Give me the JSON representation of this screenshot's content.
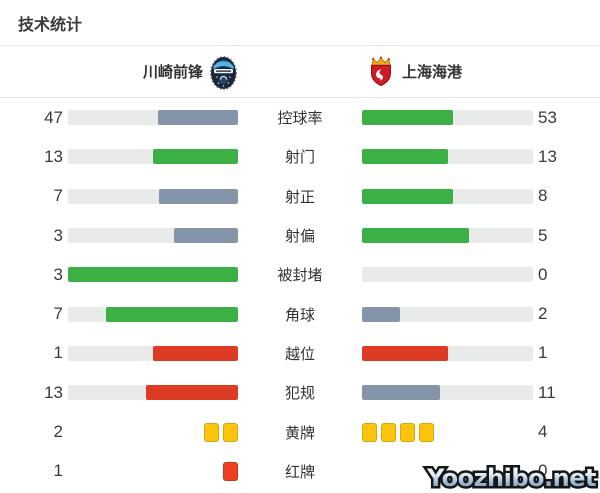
{
  "page": {
    "title": "技术统计"
  },
  "teams": {
    "home": {
      "name": "川崎前锋"
    },
    "away": {
      "name": "上海海港"
    }
  },
  "colors": {
    "win_green": "#3cb044",
    "lose_slate": "#8595a9",
    "bad_red": "#dd3b23",
    "yellow_card": "#fcc40d",
    "red_card": "#ee4023",
    "bar_track": "#e9eaea"
  },
  "stats": [
    {
      "label": "控球率",
      "home": {
        "value": "47",
        "pct": 47,
        "color": "#8595a9"
      },
      "away": {
        "value": "53",
        "pct": 53,
        "color": "#3cb044"
      }
    },
    {
      "label": "射门",
      "home": {
        "value": "13",
        "pct": 50,
        "color": "#3cb044"
      },
      "away": {
        "value": "13",
        "pct": 50,
        "color": "#3cb044"
      }
    },
    {
      "label": "射正",
      "home": {
        "value": "7",
        "pct": 46.7,
        "color": "#8595a9"
      },
      "away": {
        "value": "8",
        "pct": 53.3,
        "color": "#3cb044"
      }
    },
    {
      "label": "射偏",
      "home": {
        "value": "3",
        "pct": 37.5,
        "color": "#8595a9"
      },
      "away": {
        "value": "5",
        "pct": 62.5,
        "color": "#3cb044"
      }
    },
    {
      "label": "被封堵",
      "home": {
        "value": "3",
        "pct": 100,
        "color": "#3cb044"
      },
      "away": {
        "value": "0",
        "pct": 0,
        "color": "#3cb044"
      }
    },
    {
      "label": "角球",
      "home": {
        "value": "7",
        "pct": 77.8,
        "color": "#3cb044"
      },
      "away": {
        "value": "2",
        "pct": 22.2,
        "color": "#8595a9"
      }
    },
    {
      "label": "越位",
      "home": {
        "value": "1",
        "pct": 50,
        "color": "#dd3b23"
      },
      "away": {
        "value": "1",
        "pct": 50,
        "color": "#dd3b23"
      }
    },
    {
      "label": "犯规",
      "home": {
        "value": "13",
        "pct": 54.2,
        "color": "#dd3b23"
      },
      "away": {
        "value": "11",
        "pct": 45.8,
        "color": "#8595a9"
      }
    },
    {
      "label": "黄牌",
      "home": {
        "value": "2",
        "count": 2,
        "color": "#fcc40d",
        "icon": "yellow-card-icon"
      },
      "away": {
        "value": "4",
        "count": 4,
        "color": "#fcc40d",
        "icon": "yellow-card-icon"
      }
    },
    {
      "label": "红牌",
      "home": {
        "value": "1",
        "count": 1,
        "color": "#ee4023",
        "icon": "red-card-icon"
      },
      "away": {
        "value": "0",
        "count": 0,
        "color": "#ee4023",
        "icon": "red-card-icon"
      }
    }
  ],
  "watermark": {
    "text": "Yoozhibo.net"
  }
}
